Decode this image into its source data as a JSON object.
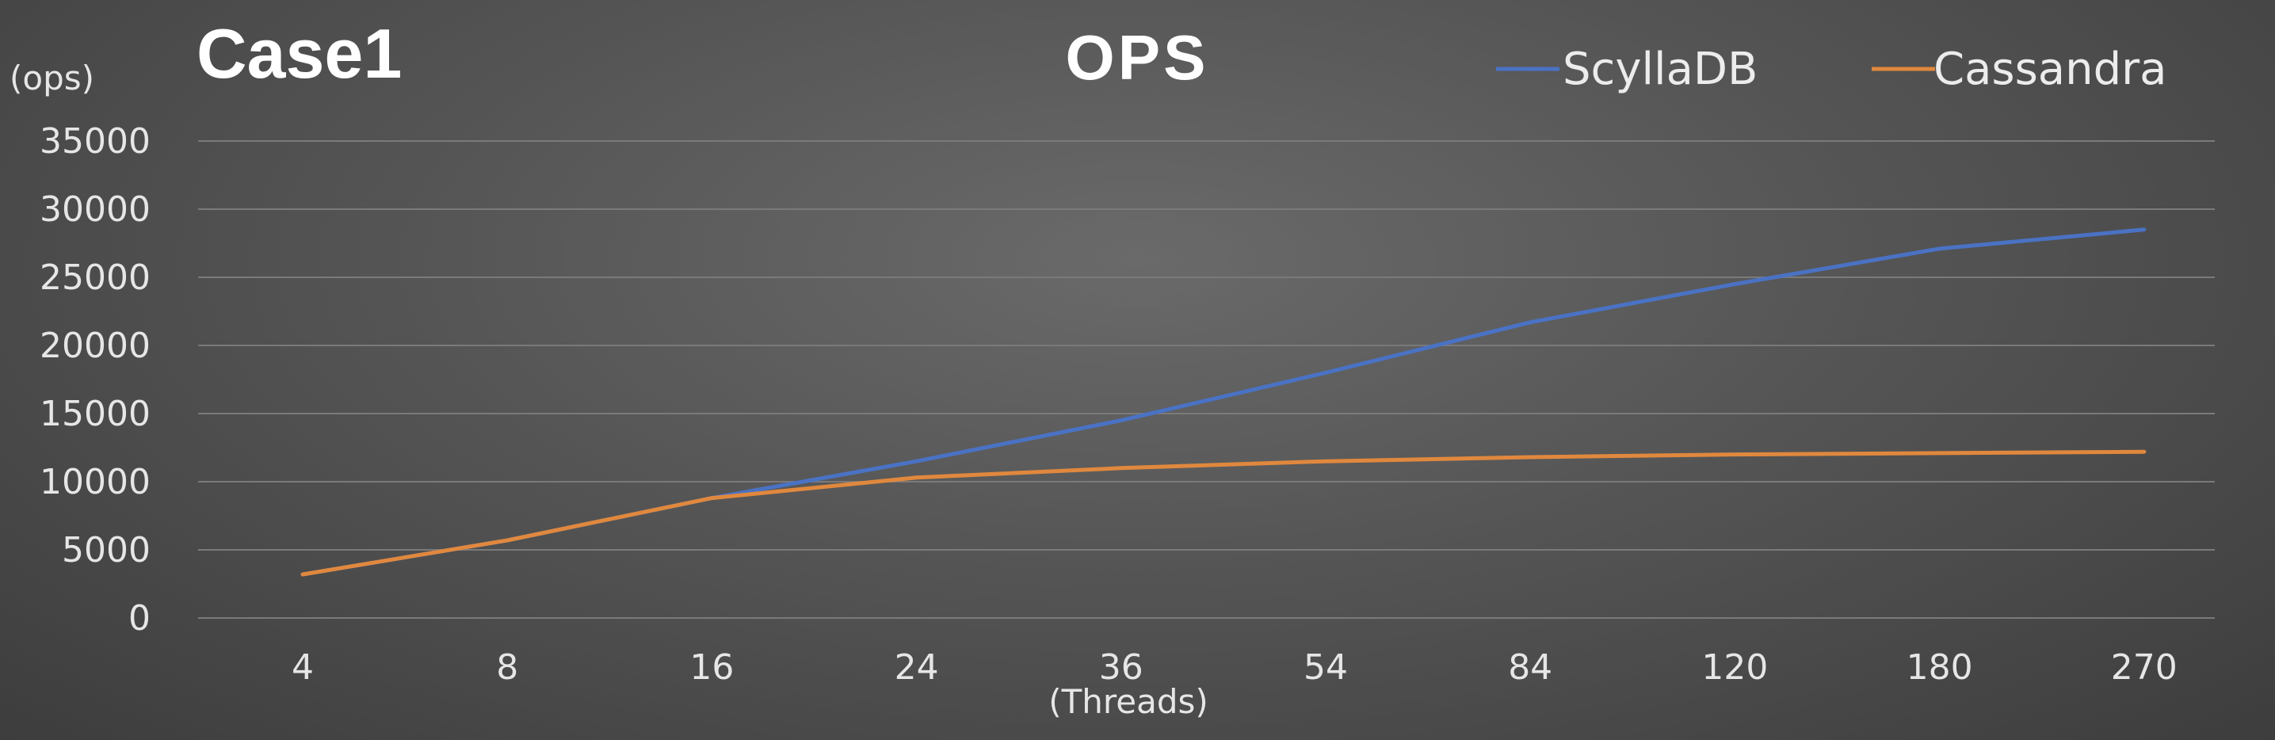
{
  "chart_data": {
    "type": "line",
    "title": "OPS",
    "case_label": "Case1",
    "xlabel": "(Threads)",
    "ylabel": "(ops)",
    "categories": [
      "4",
      "8",
      "16",
      "24",
      "36",
      "54",
      "84",
      "120",
      "180",
      "270"
    ],
    "ylim": [
      0,
      35000
    ],
    "yticks": [
      0,
      5000,
      10000,
      15000,
      20000,
      25000,
      30000,
      35000
    ],
    "grid": true,
    "legend_position": "top-right",
    "series": [
      {
        "name": "ScyllaDB",
        "color": "#4a72c4",
        "values": [
          3200,
          5700,
          8800,
          11500,
          14500,
          18000,
          21700,
          24500,
          27100,
          28500
        ]
      },
      {
        "name": "Cassandra",
        "color": "#e0883e",
        "values": [
          3200,
          5700,
          8800,
          10300,
          11000,
          11500,
          11800,
          12000,
          12100,
          12200
        ]
      }
    ]
  }
}
